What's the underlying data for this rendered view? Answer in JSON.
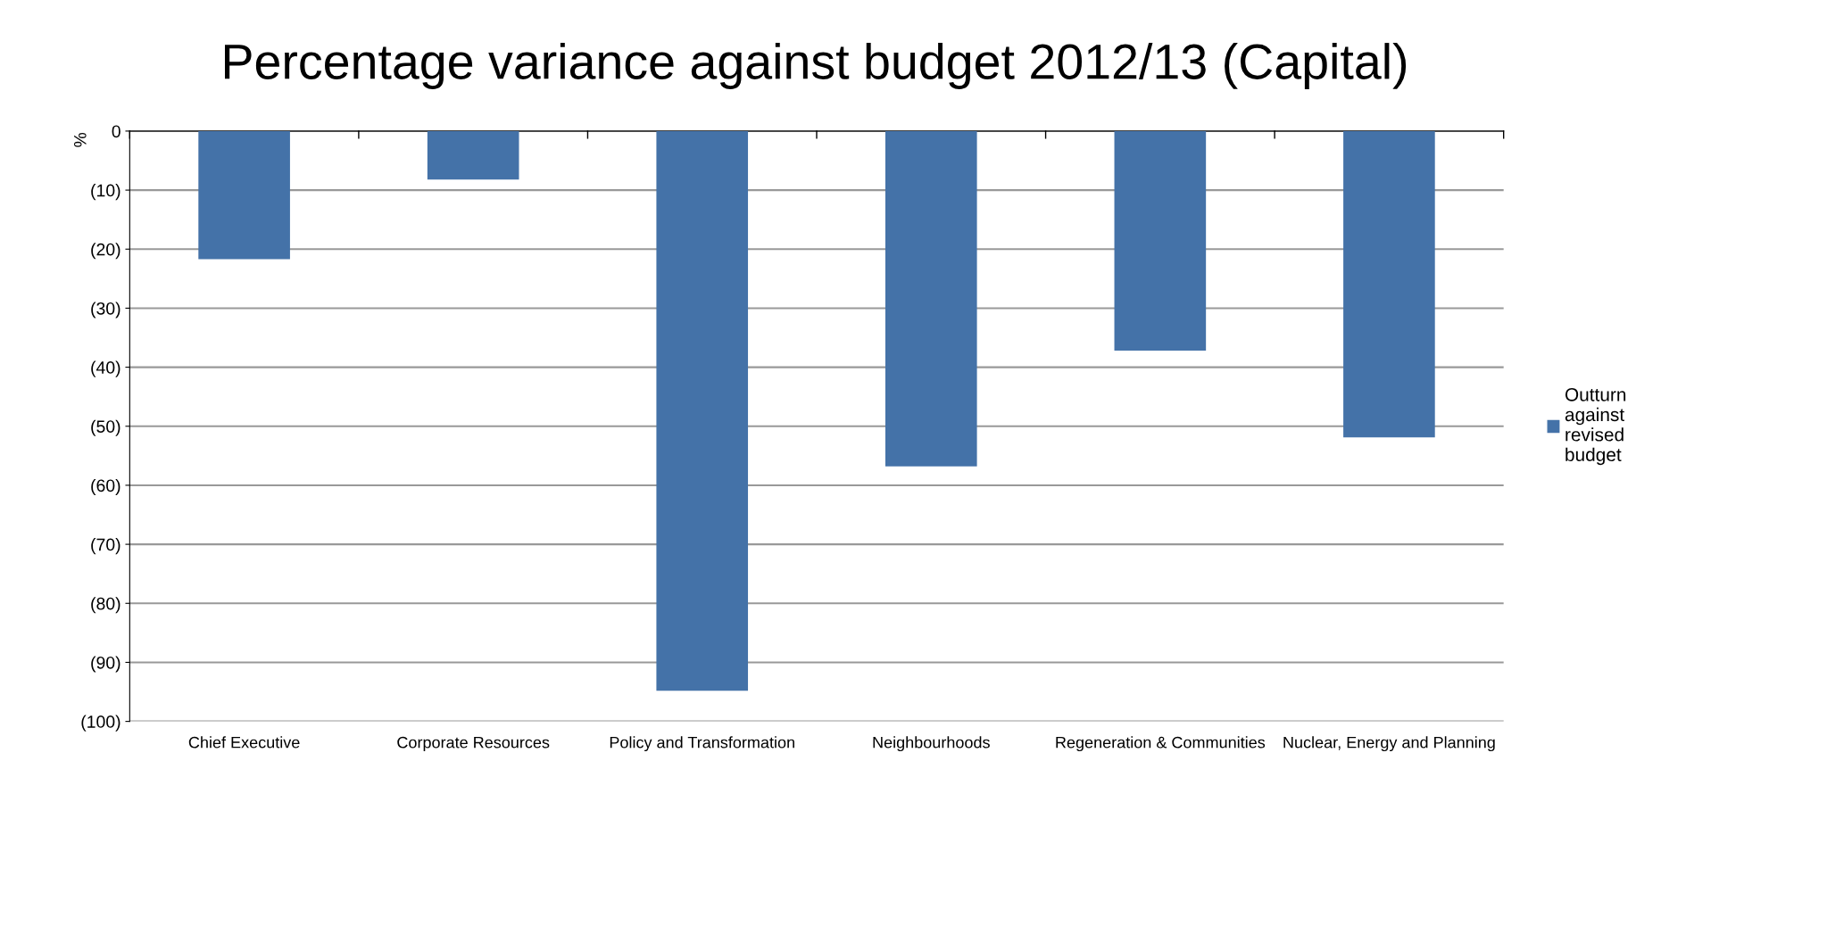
{
  "chart_data": {
    "type": "bar",
    "title": "Percentage variance against budget 2012/13 (Capital)",
    "ylabel": "%",
    "categories": [
      "Chief Executive",
      "Corporate Resources",
      "Policy and Transformation",
      "Neighbourhoods",
      "Regeneration & Communities",
      "Nuclear, Energy and Planning"
    ],
    "series": [
      {
        "name": "Outturn against revised budget",
        "color": "#4472a8",
        "values": [
          -21.7,
          -8.2,
          -94.8,
          -56.8,
          -37.2,
          -51.9
        ]
      }
    ],
    "ylim": [
      -100,
      0
    ],
    "yticks": [
      0,
      {
        "value": -10,
        "label": "(10)"
      },
      {
        "value": -20,
        "label": "(20)"
      },
      {
        "value": -30,
        "label": "(30)"
      },
      {
        "value": -40,
        "label": "(40)"
      },
      {
        "value": -50,
        "label": "(50)"
      },
      {
        "value": -60,
        "label": "(60)"
      },
      {
        "value": -70,
        "label": "(70)"
      },
      {
        "value": -80,
        "label": "(80)"
      },
      {
        "value": -90,
        "label": "(90)"
      },
      {
        "value": -100,
        "label": "(100)"
      }
    ],
    "grid": "y",
    "legend": "right"
  }
}
